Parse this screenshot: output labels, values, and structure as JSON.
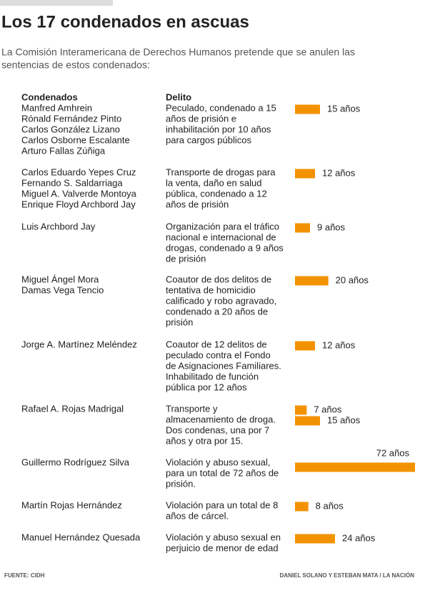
{
  "header": {
    "title": "Los 17 condenados en ascuas",
    "subtitle": [
      "La Comisión Interamericana de Derechos Humanos pretende que se anulen las",
      "sentencias de estos condenados:"
    ]
  },
  "table": {
    "columns": [
      "Condenados",
      "Delito"
    ],
    "rows": [
      {
        "names": [
          "Manfred Amhrein",
          "Rónald Fernández Pinto",
          "Carlos González Lizano",
          "Carlos Osborne Escalante",
          "Arturo Fallas Zúñiga"
        ],
        "crime": [
          "Peculado, condenado a 15",
          "años de prisión e",
          "inhabilitación por 10 años",
          "para cargos públicos"
        ],
        "sentences": [
          {
            "value": 15,
            "label": "15 años"
          }
        ]
      },
      {
        "names": [
          "Carlos Eduardo Yepes Cruz",
          "Fernando S. Saldarriaga",
          "Miguel A. Valverde Montoya",
          "Enrique Floyd Archbord Jay"
        ],
        "crime": [
          "Transporte de drogas para",
          "la venta, daño en salud",
          "pública, condenado a 12",
          "años de prisión"
        ],
        "sentences": [
          {
            "value": 12,
            "label": "12 años"
          }
        ]
      },
      {
        "names": [
          "Luis Archbord Jay"
        ],
        "crime": [
          "Organización para el tráfico",
          "nacional e internacional de",
          "drogas, condenado a 9 años",
          "de prisión"
        ],
        "sentences": [
          {
            "value": 9,
            "label": "9 años"
          }
        ]
      },
      {
        "names": [
          "Miguel Ángel Mora",
          "Damas Vega Tencio"
        ],
        "crime": [
          "Coautor de dos delitos de",
          "tentativa de homicidio",
          "calificado y robo agravado,",
          "condenado a 20 años de",
          "prisión"
        ],
        "sentences": [
          {
            "value": 20,
            "label": "20 años"
          }
        ]
      },
      {
        "names": [
          "Jorge A. Martínez Meléndez"
        ],
        "crime": [
          "Coautor de 12 delitos de",
          "peculado contra el Fondo",
          "de Asignaciones Familiares.",
          "Inhabilitado de función",
          "pública por 12 años"
        ],
        "sentences": [
          {
            "value": 12,
            "label": "12 años"
          }
        ]
      },
      {
        "names": [
          "Rafael A. Rojas Madrigal"
        ],
        "crime": [
          "Transporte y",
          "almacenamiento de droga.",
          "Dos condenas, una por 7",
          "años y otra por 15."
        ],
        "sentences": [
          {
            "value": 7,
            "label": "7 años"
          },
          {
            "value": 15,
            "label": "15 años"
          }
        ]
      },
      {
        "names": [
          "Guillermo Rodríguez Silva"
        ],
        "crime": [
          "Violación y abuso sexual,",
          "para un total de 72 años de",
          "prisión."
        ],
        "sentences": [
          {
            "value": 72,
            "label": "72 años"
          }
        ]
      },
      {
        "names": [
          "Martín Rojas Hernández"
        ],
        "crime": [
          "Violación para un total de 8",
          "años de cárcel."
        ],
        "sentences": [
          {
            "value": 8,
            "label": "8 años"
          }
        ]
      },
      {
        "names": [
          "Manuel Hernández Quesada"
        ],
        "crime": [
          "Violación y abuso sexual en",
          "perjuicio de menor de edad"
        ],
        "sentences": [
          {
            "value": 24,
            "label": "24 años"
          }
        ]
      }
    ]
  },
  "footer": {
    "source": "FUENTE: CIDH",
    "credit": "DANIEL SOLANO Y ESTEBAN MATA / LA NACIÓN"
  }
}
